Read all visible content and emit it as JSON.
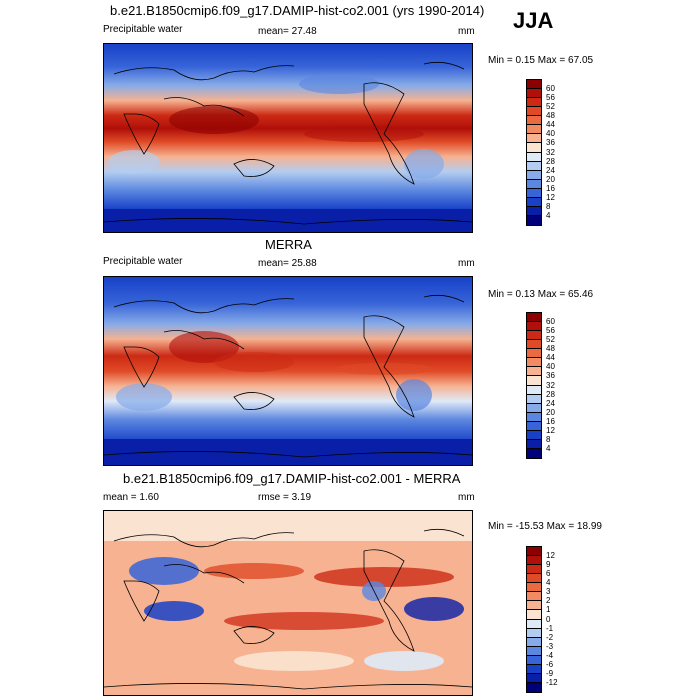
{
  "season": "JJA",
  "panels": [
    {
      "id": "model",
      "title": "b.e21.B1850cmip6.f09_g17.DAMIP-hist-co2.001 (yrs 1990-2014)",
      "left_label": "Precipitable water",
      "center_label": "mean=  27.48",
      "unit": "mm",
      "minmax": "Min =   0.15 Max =  67.05",
      "ticks": [
        "60",
        "56",
        "52",
        "48",
        "44",
        "40",
        "36",
        "32",
        "28",
        "24",
        "20",
        "16",
        "12",
        "8",
        "4"
      ]
    },
    {
      "id": "obs",
      "title": "MERRA",
      "left_label": "Precipitable water",
      "center_label": "mean=  25.88",
      "unit": "mm",
      "minmax": "Min =   0.13 Max =  65.46",
      "ticks": [
        "60",
        "56",
        "52",
        "48",
        "44",
        "40",
        "36",
        "32",
        "28",
        "24",
        "20",
        "16",
        "12",
        "8",
        "4"
      ]
    },
    {
      "id": "diff",
      "title": "b.e21.B1850cmip6.f09_g17.DAMIP-hist-co2.001 - MERRA",
      "left_label": "mean =   1.60",
      "center_label": "rmse =   3.19",
      "unit": "mm",
      "minmax": "Min = -15.53 Max =  18.99",
      "ticks": [
        "12",
        "9",
        "6",
        "4",
        "3",
        "2",
        "1",
        "0",
        "-1",
        "-2",
        "-3",
        "-4",
        "-6",
        "-9",
        "-12"
      ]
    }
  ],
  "colors": {
    "seq": [
      "#8b0000",
      "#b00f0a",
      "#cc2a14",
      "#e04a26",
      "#ec6a40",
      "#f28a62",
      "#f6b291",
      "#fbe3d2",
      "#dfeaf7",
      "#b3cdf0",
      "#87abe8",
      "#5b87e0",
      "#3764d8",
      "#1841c8",
      "#0a1fa8",
      "#00007a"
    ],
    "div": [
      "#8b0000",
      "#b00f0a",
      "#cc2a14",
      "#e04a26",
      "#ec6a40",
      "#f28a62",
      "#f6b291",
      "#fbe3d2",
      "#dfeaf7",
      "#b3cdf0",
      "#87abe8",
      "#5b87e0",
      "#3764d8",
      "#1841c8",
      "#0a1fa8",
      "#00007a"
    ]
  }
}
